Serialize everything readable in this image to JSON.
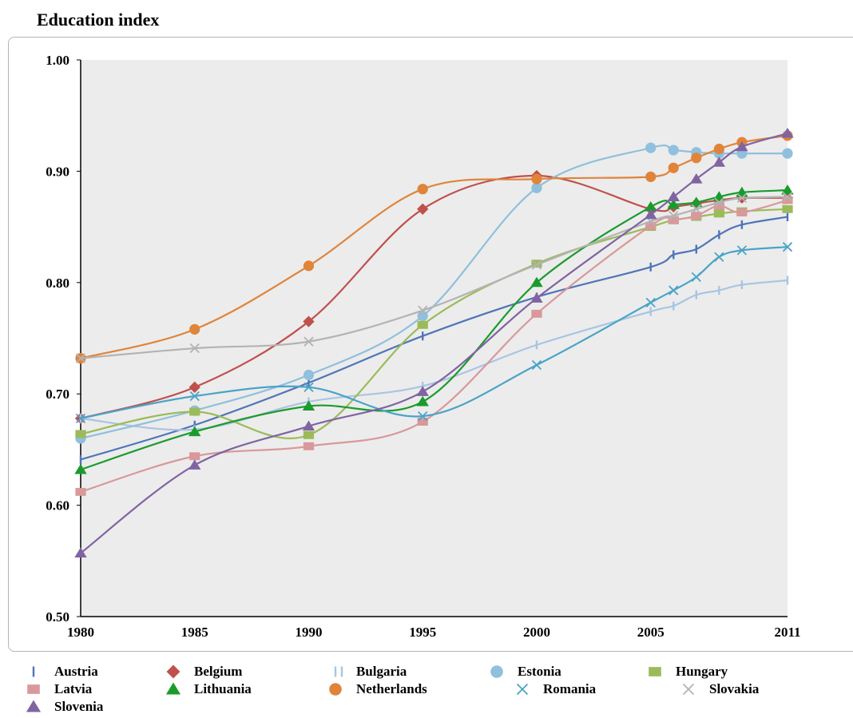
{
  "chart_data": {
    "type": "line",
    "title": "Education index",
    "xlabel": "",
    "ylabel": "",
    "x": [
      1980,
      1985,
      1990,
      1995,
      2000,
      2005,
      2006,
      2007,
      2008,
      2009,
      2011
    ],
    "x_tick_labels": [
      "1980",
      "1985",
      "1990",
      "1995",
      "2000",
      "2005",
      "2011"
    ],
    "y_tick_labels": [
      "0.50",
      "0.60",
      "0.70",
      "0.80",
      "0.90",
      "1.00"
    ],
    "ylim": [
      0.5,
      1.0
    ],
    "grid": false,
    "plot_background": "#ececec",
    "legend_position": "bottom",
    "series": [
      {
        "name": "Austria",
        "color": "#4f75b8",
        "marker": "bar",
        "values": [
          0.641,
          0.672,
          0.71,
          0.752,
          0.787,
          0.814,
          0.825,
          0.83,
          0.843,
          0.852,
          0.859
        ]
      },
      {
        "name": "Belgium",
        "color": "#c0504d",
        "marker": "diamond",
        "values": [
          0.678,
          0.706,
          0.765,
          0.866,
          0.896,
          0.866,
          0.868,
          0.871,
          0.874,
          0.876,
          0.876
        ]
      },
      {
        "name": "Bulgaria",
        "color": "#a9c4e3",
        "marker": "bar",
        "values": [
          0.678,
          0.668,
          0.693,
          0.707,
          0.744,
          0.774,
          0.779,
          0.789,
          0.793,
          0.798,
          0.802
        ]
      },
      {
        "name": "Estonia",
        "color": "#8fc0dd",
        "marker": "circle",
        "values": [
          0.66,
          0.685,
          0.717,
          0.77,
          0.885,
          0.921,
          0.919,
          0.917,
          0.916,
          0.916,
          0.916
        ]
      },
      {
        "name": "Hungary",
        "color": "#9bbb59",
        "marker": "square",
        "values": [
          0.664,
          0.684,
          0.663,
          0.762,
          0.817,
          0.85,
          0.856,
          0.859,
          0.862,
          0.864,
          0.866
        ]
      },
      {
        "name": "Latvia",
        "color": "#d9989a",
        "marker": "square",
        "values": [
          0.612,
          0.644,
          0.653,
          0.675,
          0.772,
          0.851,
          0.856,
          0.86,
          0.869,
          0.863,
          0.874
        ]
      },
      {
        "name": "Lithuania",
        "color": "#1a9b2c",
        "marker": "triangle",
        "values": [
          0.632,
          0.666,
          0.689,
          0.693,
          0.8,
          0.868,
          0.87,
          0.872,
          0.877,
          0.881,
          0.883
        ]
      },
      {
        "name": "Netherlands",
        "color": "#e0843a",
        "marker": "circle",
        "values": [
          0.732,
          0.758,
          0.815,
          0.884,
          0.893,
          0.895,
          0.903,
          0.912,
          0.92,
          0.926,
          0.932
        ]
      },
      {
        "name": "Romania",
        "color": "#4ba3c7",
        "marker": "x",
        "values": [
          0.678,
          0.698,
          0.706,
          0.68,
          0.726,
          0.782,
          0.793,
          0.805,
          0.823,
          0.829,
          0.832
        ]
      },
      {
        "name": "Slovakia",
        "color": "#b3b3b3",
        "marker": "x",
        "values": [
          0.732,
          0.741,
          0.747,
          0.775,
          0.816,
          0.855,
          0.86,
          0.866,
          0.872,
          0.876,
          0.877
        ]
      },
      {
        "name": "Slovenia",
        "color": "#8064a2",
        "marker": "triangle",
        "values": [
          0.557,
          0.636,
          0.671,
          0.702,
          0.786,
          0.861,
          0.877,
          0.893,
          0.908,
          0.922,
          0.934
        ]
      }
    ]
  }
}
